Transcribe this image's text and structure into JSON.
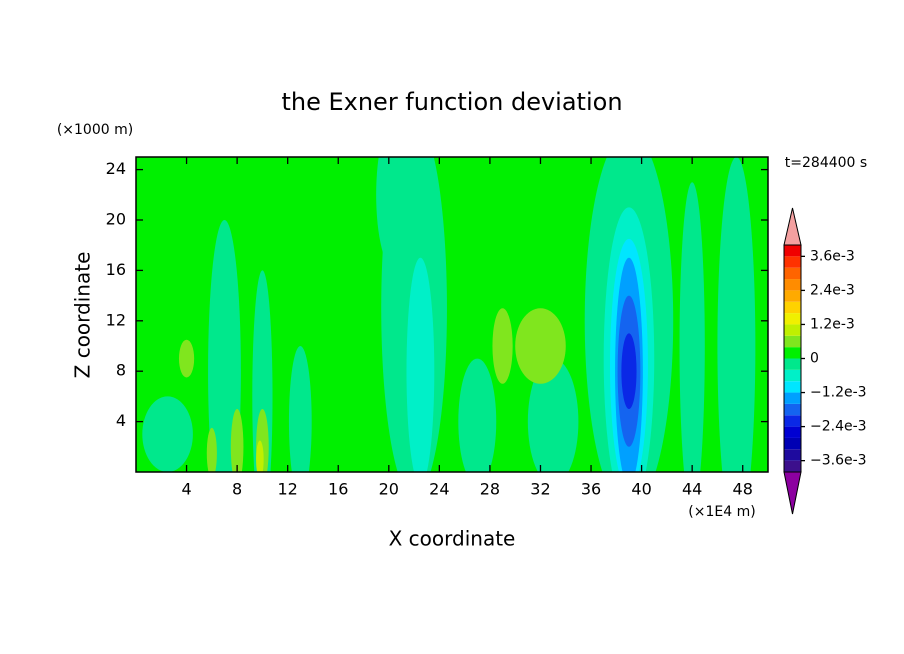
{
  "chart_data": {
    "type": "contour",
    "title": "the Exner function deviation",
    "x_label": "X coordinate",
    "y_label": "Z coordinate",
    "x_unit": "(×1E4 m)",
    "y_unit": "(×1000 m)",
    "time_label": "t=284400 s",
    "xlim": [
      0,
      50
    ],
    "ylim": [
      0,
      25
    ],
    "xticks": [
      4,
      8,
      12,
      16,
      20,
      24,
      28,
      32,
      36,
      40,
      44,
      48
    ],
    "yticks": [
      4,
      8,
      12,
      16,
      20,
      24
    ],
    "levels": [
      -0.004,
      -0.0036,
      -0.0032,
      -0.0028,
      -0.0024,
      -0.002,
      -0.0016,
      -0.0012,
      -0.0008,
      -0.0004,
      0,
      0.0004,
      0.0008,
      0.0012,
      0.0016,
      0.002,
      0.0024,
      0.0028,
      0.0032,
      0.0036,
      0.004
    ],
    "colors": [
      "#3c0f8c",
      "#1e0a9e",
      "#0000b4",
      "#0000d2",
      "#0a28e6",
      "#1464f0",
      "#00a0ff",
      "#00e6ff",
      "#00f0c8",
      "#00e88c",
      "#00f000",
      "#80e61e",
      "#c0f000",
      "#f0f000",
      "#ffd200",
      "#ffaa00",
      "#ff8c00",
      "#ff6400",
      "#ff3200",
      "#f00000"
    ],
    "under_color": "#8c00a0",
    "over_color": "#f4a0a0",
    "cticks": [
      {
        "value": 0.0036,
        "label": "3.6e-3"
      },
      {
        "value": 0.0024,
        "label": "2.4e-3"
      },
      {
        "value": 0.0012,
        "label": "1.2e-3"
      },
      0,
      {
        "value": -0.0012,
        "label": "−1.2e-3"
      },
      {
        "value": -0.0024,
        "label": "−2.4e-3"
      },
      {
        "value": -0.0036,
        "label": "−3.6e-3"
      }
    ],
    "background_value": 0.0002,
    "features": [
      {
        "x": 22,
        "z": 13,
        "rx": 2.6,
        "rz": 15,
        "value": -0.0002
      },
      {
        "x": 20.5,
        "z": 22,
        "rx": 1.5,
        "rz": 6,
        "value": -0.0002
      },
      {
        "x": 39,
        "z": 12,
        "rx": 3.5,
        "rz": 15,
        "value": -0.0002
      },
      {
        "x": 7,
        "z": 8,
        "rx": 1.3,
        "rz": 12,
        "value": -0.0002
      },
      {
        "x": 10,
        "z": 6,
        "rx": 0.8,
        "rz": 10,
        "value": -0.0002
      },
      {
        "x": 13,
        "z": 4,
        "rx": 0.9,
        "rz": 6,
        "value": -0.0002
      },
      {
        "x": 44,
        "z": 10,
        "rx": 1,
        "rz": 13,
        "value": -0.0002
      },
      {
        "x": 47.5,
        "z": 10,
        "rx": 1.5,
        "rz": 15,
        "value": -0.0002
      },
      {
        "x": 33,
        "z": 4,
        "rx": 2,
        "rz": 5,
        "value": -0.0002
      },
      {
        "x": 27,
        "z": 4,
        "rx": 1.5,
        "rz": 5,
        "value": -0.0002
      },
      {
        "x": 2.5,
        "z": 3,
        "rx": 2,
        "rz": 3,
        "value": -0.0002
      },
      {
        "x": 22.5,
        "z": 8,
        "rx": 1.1,
        "rz": 9,
        "value": -0.0006
      },
      {
        "x": 39,
        "z": 9,
        "rx": 2,
        "rz": 12,
        "value": -0.0006
      },
      {
        "x": 39,
        "z": 8.5,
        "rx": 1.5,
        "rz": 10,
        "value": -0.001
      },
      {
        "x": 39,
        "z": 8,
        "rx": 1.1,
        "rz": 9,
        "value": -0.0014
      },
      {
        "x": 39,
        "z": 8,
        "rx": 0.9,
        "rz": 6,
        "value": -0.0018
      },
      {
        "x": 39,
        "z": 8,
        "rx": 0.6,
        "rz": 3,
        "value": -0.0022
      },
      {
        "x": 32,
        "z": 10,
        "rx": 2,
        "rz": 3,
        "value": 0.0006
      },
      {
        "x": 29,
        "z": 10,
        "rx": 0.8,
        "rz": 3,
        "value": 0.0006
      },
      {
        "x": 4,
        "z": 9,
        "rx": 0.6,
        "rz": 1.5,
        "value": 0.0006
      },
      {
        "x": 8,
        "z": 2,
        "rx": 0.5,
        "rz": 3,
        "value": 0.0006
      },
      {
        "x": 10,
        "z": 2,
        "rx": 0.5,
        "rz": 3,
        "value": 0.0006
      },
      {
        "x": 6,
        "z": 1.5,
        "rx": 0.4,
        "rz": 2,
        "value": 0.0006
      },
      {
        "x": 9.8,
        "z": 1,
        "rx": 0.3,
        "rz": 1.5,
        "value": 0.001
      }
    ]
  }
}
